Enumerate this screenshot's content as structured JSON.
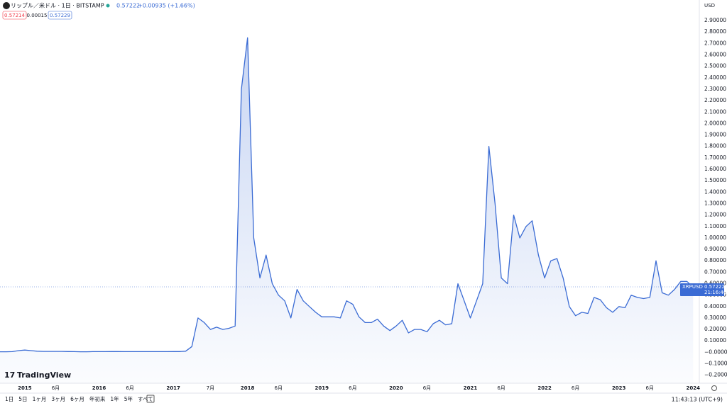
{
  "ui": {
    "symbol_title": "リップル／米ドル · 1日 · BITSTAMP",
    "change": "+0.00935 (+1.66%)",
    "bid": "0.57214",
    "spread": "0.00015",
    "ask": "0.57229",
    "currency": "USD",
    "logo": "TradingView",
    "price_tag_symbol": "XRPUSD",
    "price_tag_time": "21:16:46",
    "clock": "11:43:13 (UTC+9)",
    "ranges": [
      "1日",
      "5日",
      "1ヶ月",
      "3ヶ月",
      "6ヶ月",
      "年初来",
      "1年",
      "5年",
      "すべて"
    ]
  },
  "chart_data": {
    "type": "line",
    "color": "#3a6bd4",
    "area": true,
    "grid": false,
    "last_price": 0.57222,
    "xlim": [
      "2014-09",
      "2024-02"
    ],
    "ylim": [
      -0.27,
      3.08
    ],
    "xticks": [
      {
        "value": "2015-01",
        "label": "2015"
      },
      {
        "value": "2015-06",
        "label": "6月"
      },
      {
        "value": "2016-01",
        "label": "2016"
      },
      {
        "value": "2016-06",
        "label": "6月"
      },
      {
        "value": "2017-01",
        "label": "2017"
      },
      {
        "value": "2017-07",
        "label": "7月"
      },
      {
        "value": "2018-01",
        "label": "2018"
      },
      {
        "value": "2018-06",
        "label": "6月"
      },
      {
        "value": "2019-01",
        "label": "2019"
      },
      {
        "value": "2019-06",
        "label": "6月"
      },
      {
        "value": "2020-01",
        "label": "2020"
      },
      {
        "value": "2020-06",
        "label": "6月"
      },
      {
        "value": "2021-01",
        "label": "2021"
      },
      {
        "value": "2021-06",
        "label": "6月"
      },
      {
        "value": "2022-01",
        "label": "2022"
      },
      {
        "value": "2022-06",
        "label": "6月"
      },
      {
        "value": "2023-01",
        "label": "2023"
      },
      {
        "value": "2023-06",
        "label": "6月"
      },
      {
        "value": "2024-01",
        "label": "2024"
      }
    ],
    "yticks": [
      {
        "value": -0.2,
        "label": "−0.20000"
      },
      {
        "value": -0.1,
        "label": "−0.10000"
      },
      {
        "value": 0,
        "label": "−0.00000"
      },
      {
        "value": 0.1,
        "label": "0.10000"
      },
      {
        "value": 0.2,
        "label": "0.20000"
      },
      {
        "value": 0.3,
        "label": "0.30000"
      },
      {
        "value": 0.4,
        "label": "0.40000"
      },
      {
        "value": 0.5,
        "label": "0.50000"
      },
      {
        "value": 0.6,
        "label": "0.60000"
      },
      {
        "value": 0.7,
        "label": "0.70000"
      },
      {
        "value": 0.8,
        "label": "0.80000"
      },
      {
        "value": 0.9,
        "label": "0.90000"
      },
      {
        "value": 1.0,
        "label": "1.00000"
      },
      {
        "value": 1.1,
        "label": "1.10000"
      },
      {
        "value": 1.2,
        "label": "1.20000"
      },
      {
        "value": 1.3,
        "label": "1.30000"
      },
      {
        "value": 1.4,
        "label": "1.40000"
      },
      {
        "value": 1.5,
        "label": "1.50000"
      },
      {
        "value": 1.6,
        "label": "1.60000"
      },
      {
        "value": 1.7,
        "label": "1.70000"
      },
      {
        "value": 1.8,
        "label": "1.80000"
      },
      {
        "value": 1.9,
        "label": "1.90000"
      },
      {
        "value": 2.0,
        "label": "2.00000"
      },
      {
        "value": 2.1,
        "label": "2.10000"
      },
      {
        "value": 2.2,
        "label": "2.20000"
      },
      {
        "value": 2.3,
        "label": "2.30000"
      },
      {
        "value": 2.4,
        "label": "2.40000"
      },
      {
        "value": 2.5,
        "label": "2.50000"
      },
      {
        "value": 2.6,
        "label": "2.60000"
      },
      {
        "value": 2.7,
        "label": "2.70000"
      },
      {
        "value": 2.8,
        "label": "2.80000"
      },
      {
        "value": 2.9,
        "label": "2.90000"
      }
    ],
    "x": [
      "2014-09",
      "2014-10",
      "2014-11",
      "2014-12",
      "2015-01",
      "2015-02",
      "2015-03",
      "2015-04",
      "2015-05",
      "2015-06",
      "2015-07",
      "2015-08",
      "2015-09",
      "2015-10",
      "2015-11",
      "2015-12",
      "2016-01",
      "2016-02",
      "2016-03",
      "2016-04",
      "2016-05",
      "2016-06",
      "2016-07",
      "2016-08",
      "2016-09",
      "2016-10",
      "2016-11",
      "2016-12",
      "2017-01",
      "2017-02",
      "2017-03",
      "2017-04",
      "2017-05",
      "2017-06",
      "2017-07",
      "2017-08",
      "2017-09",
      "2017-10",
      "2017-11",
      "2017-12",
      "2018-01",
      "2018-02",
      "2018-03",
      "2018-04",
      "2018-05",
      "2018-06",
      "2018-07",
      "2018-08",
      "2018-09",
      "2018-10",
      "2018-11",
      "2018-12",
      "2019-01",
      "2019-02",
      "2019-03",
      "2019-04",
      "2019-05",
      "2019-06",
      "2019-07",
      "2019-08",
      "2019-09",
      "2019-10",
      "2019-11",
      "2019-12",
      "2020-01",
      "2020-02",
      "2020-03",
      "2020-04",
      "2020-05",
      "2020-06",
      "2020-07",
      "2020-08",
      "2020-09",
      "2020-10",
      "2020-11",
      "2020-12",
      "2021-01",
      "2021-02",
      "2021-03",
      "2021-04",
      "2021-05",
      "2021-06",
      "2021-07",
      "2021-08",
      "2021-09",
      "2021-10",
      "2021-11",
      "2021-12",
      "2022-01",
      "2022-02",
      "2022-03",
      "2022-04",
      "2022-05",
      "2022-06",
      "2022-07",
      "2022-08",
      "2022-09",
      "2022-10",
      "2022-11",
      "2022-12",
      "2023-01",
      "2023-02",
      "2023-03",
      "2023-04",
      "2023-05",
      "2023-06",
      "2023-07",
      "2023-08",
      "2023-09",
      "2023-10",
      "2023-11",
      "2023-12",
      "2024-01"
    ],
    "values": [
      0.005,
      0.005,
      0.006,
      0.015,
      0.02,
      0.015,
      0.01,
      0.008,
      0.008,
      0.008,
      0.008,
      0.007,
      0.006,
      0.005,
      0.005,
      0.006,
      0.006,
      0.006,
      0.007,
      0.007,
      0.006,
      0.006,
      0.006,
      0.006,
      0.006,
      0.006,
      0.006,
      0.006,
      0.007,
      0.007,
      0.01,
      0.05,
      0.3,
      0.26,
      0.2,
      0.22,
      0.2,
      0.21,
      0.23,
      2.3,
      2.75,
      1.0,
      0.65,
      0.85,
      0.6,
      0.5,
      0.45,
      0.3,
      0.55,
      0.45,
      0.4,
      0.35,
      0.31,
      0.31,
      0.31,
      0.3,
      0.45,
      0.42,
      0.31,
      0.26,
      0.26,
      0.29,
      0.23,
      0.19,
      0.23,
      0.28,
      0.17,
      0.2,
      0.2,
      0.18,
      0.25,
      0.28,
      0.24,
      0.25,
      0.6,
      0.45,
      0.3,
      0.45,
      0.6,
      1.8,
      1.3,
      0.65,
      0.6,
      1.2,
      1.0,
      1.1,
      1.15,
      0.85,
      0.65,
      0.8,
      0.82,
      0.65,
      0.4,
      0.32,
      0.35,
      0.34,
      0.48,
      0.46,
      0.39,
      0.35,
      0.4,
      0.39,
      0.5,
      0.48,
      0.47,
      0.48,
      0.8,
      0.52,
      0.5,
      0.55,
      0.62,
      0.62,
      0.57
    ]
  }
}
